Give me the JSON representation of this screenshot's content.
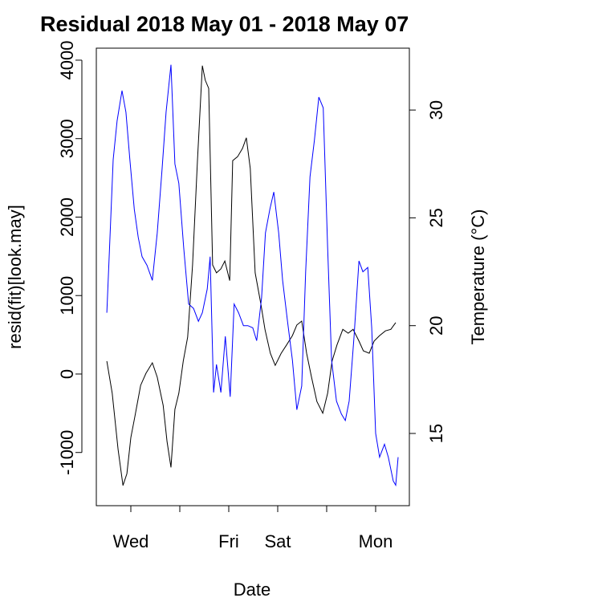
{
  "chart_data": {
    "type": "line",
    "title": "Residual  2018 May 01 - 2018 May 07",
    "x_label": "Date",
    "y_label": "resid(fit)[look.may]",
    "y2_label": "Temperature (°C)",
    "y2_label_color": "#0000ff",
    "xlim": [
      1.295,
      7.689
    ],
    "xticks": [
      {
        "value": 2,
        "label": "Wed"
      },
      {
        "value": 3,
        "label": null
      },
      {
        "value": 4,
        "label": "Fri"
      },
      {
        "value": 5,
        "label": "Sat"
      },
      {
        "value": 6,
        "label": null
      },
      {
        "value": 7,
        "label": "Mon"
      }
    ],
    "ylim": [
      -1678,
      4153
    ],
    "yticks": [
      -1000,
      0,
      1000,
      2000,
      3000,
      4000
    ],
    "y2lim": [
      11.65,
      32.87
    ],
    "y2ticks": [
      15,
      20,
      25,
      30
    ],
    "grid": false,
    "series": [
      {
        "color": "#000000",
        "x": [
          1.51,
          1.62,
          1.74,
          1.84,
          1.92,
          2.0,
          2.08,
          2.2,
          2.31,
          2.44,
          2.54,
          2.66,
          2.74,
          2.82,
          2.9,
          2.98,
          3.07,
          3.16,
          3.26,
          3.36,
          3.46,
          3.52,
          3.59,
          3.67,
          3.75,
          3.84,
          3.92,
          4.02,
          4.08,
          4.18,
          4.28,
          4.36,
          4.44,
          4.54,
          4.66,
          4.74,
          4.85,
          4.95,
          5.07,
          5.18,
          5.3,
          5.39,
          5.49,
          5.59,
          5.69,
          5.8,
          5.92,
          6.02,
          6.11,
          6.21,
          6.33,
          6.44,
          6.54,
          6.66,
          6.75,
          6.87,
          6.97,
          7.08,
          7.2,
          7.31,
          7.41
        ],
        "values": [
          164,
          -245,
          -960,
          -1420,
          -1270,
          -810,
          -550,
          -145,
          10,
          143,
          -40,
          -400,
          -860,
          -1190,
          -450,
          -245,
          164,
          470,
          1390,
          2720,
          3930,
          3745,
          3640,
          1390,
          1290,
          1340,
          1440,
          1190,
          2720,
          2770,
          2875,
          3010,
          2620,
          1290,
          880,
          570,
          265,
          110,
          265,
          370,
          490,
          625,
          675,
          265,
          -40,
          -350,
          -500,
          -245,
          164,
          370,
          570,
          520,
          570,
          420,
          295,
          265,
          420,
          490,
          550,
          570,
          655
        ]
      },
      {
        "color": "#0000ff",
        "axis": "y2",
        "x": [
          1.51,
          1.57,
          1.64,
          1.72,
          1.82,
          1.9,
          1.98,
          2.07,
          2.15,
          2.23,
          2.33,
          2.44,
          2.54,
          2.64,
          2.72,
          2.82,
          2.9,
          2.98,
          3.08,
          3.18,
          3.28,
          3.38,
          3.46,
          3.56,
          3.62,
          3.69,
          3.75,
          3.84,
          3.93,
          4.03,
          4.11,
          4.2,
          4.3,
          4.39,
          4.49,
          4.57,
          4.67,
          4.75,
          4.84,
          4.92,
          5.02,
          5.1,
          5.2,
          5.3,
          5.39,
          5.49,
          5.57,
          5.66,
          5.75,
          5.84,
          5.93,
          6.02,
          6.1,
          6.2,
          6.3,
          6.38,
          6.46,
          6.56,
          6.66,
          6.74,
          6.84,
          6.92,
          7.0,
          7.08,
          7.18,
          7.26,
          7.36,
          7.41,
          7.46
        ],
        "values": [
          20.6,
          23.9,
          27.7,
          29.5,
          30.9,
          29.9,
          27.7,
          25.4,
          24.1,
          23.2,
          22.8,
          22.1,
          24.3,
          27.3,
          29.9,
          32.1,
          27.5,
          26.6,
          23.6,
          21.0,
          20.8,
          20.2,
          20.6,
          21.7,
          23.2,
          16.9,
          18.2,
          16.9,
          19.5,
          16.7,
          21.0,
          20.6,
          20.0,
          20.0,
          19.9,
          19.3,
          21.3,
          24.3,
          25.4,
          26.2,
          24.3,
          22.1,
          20.2,
          18.4,
          16.1,
          17.2,
          22.5,
          26.9,
          28.6,
          30.6,
          30.1,
          23.6,
          18.4,
          16.5,
          15.9,
          15.6,
          16.5,
          19.5,
          23.0,
          22.5,
          22.7,
          19.9,
          15.0,
          13.9,
          14.5,
          13.9,
          12.8,
          12.6,
          13.9
        ]
      }
    ]
  }
}
